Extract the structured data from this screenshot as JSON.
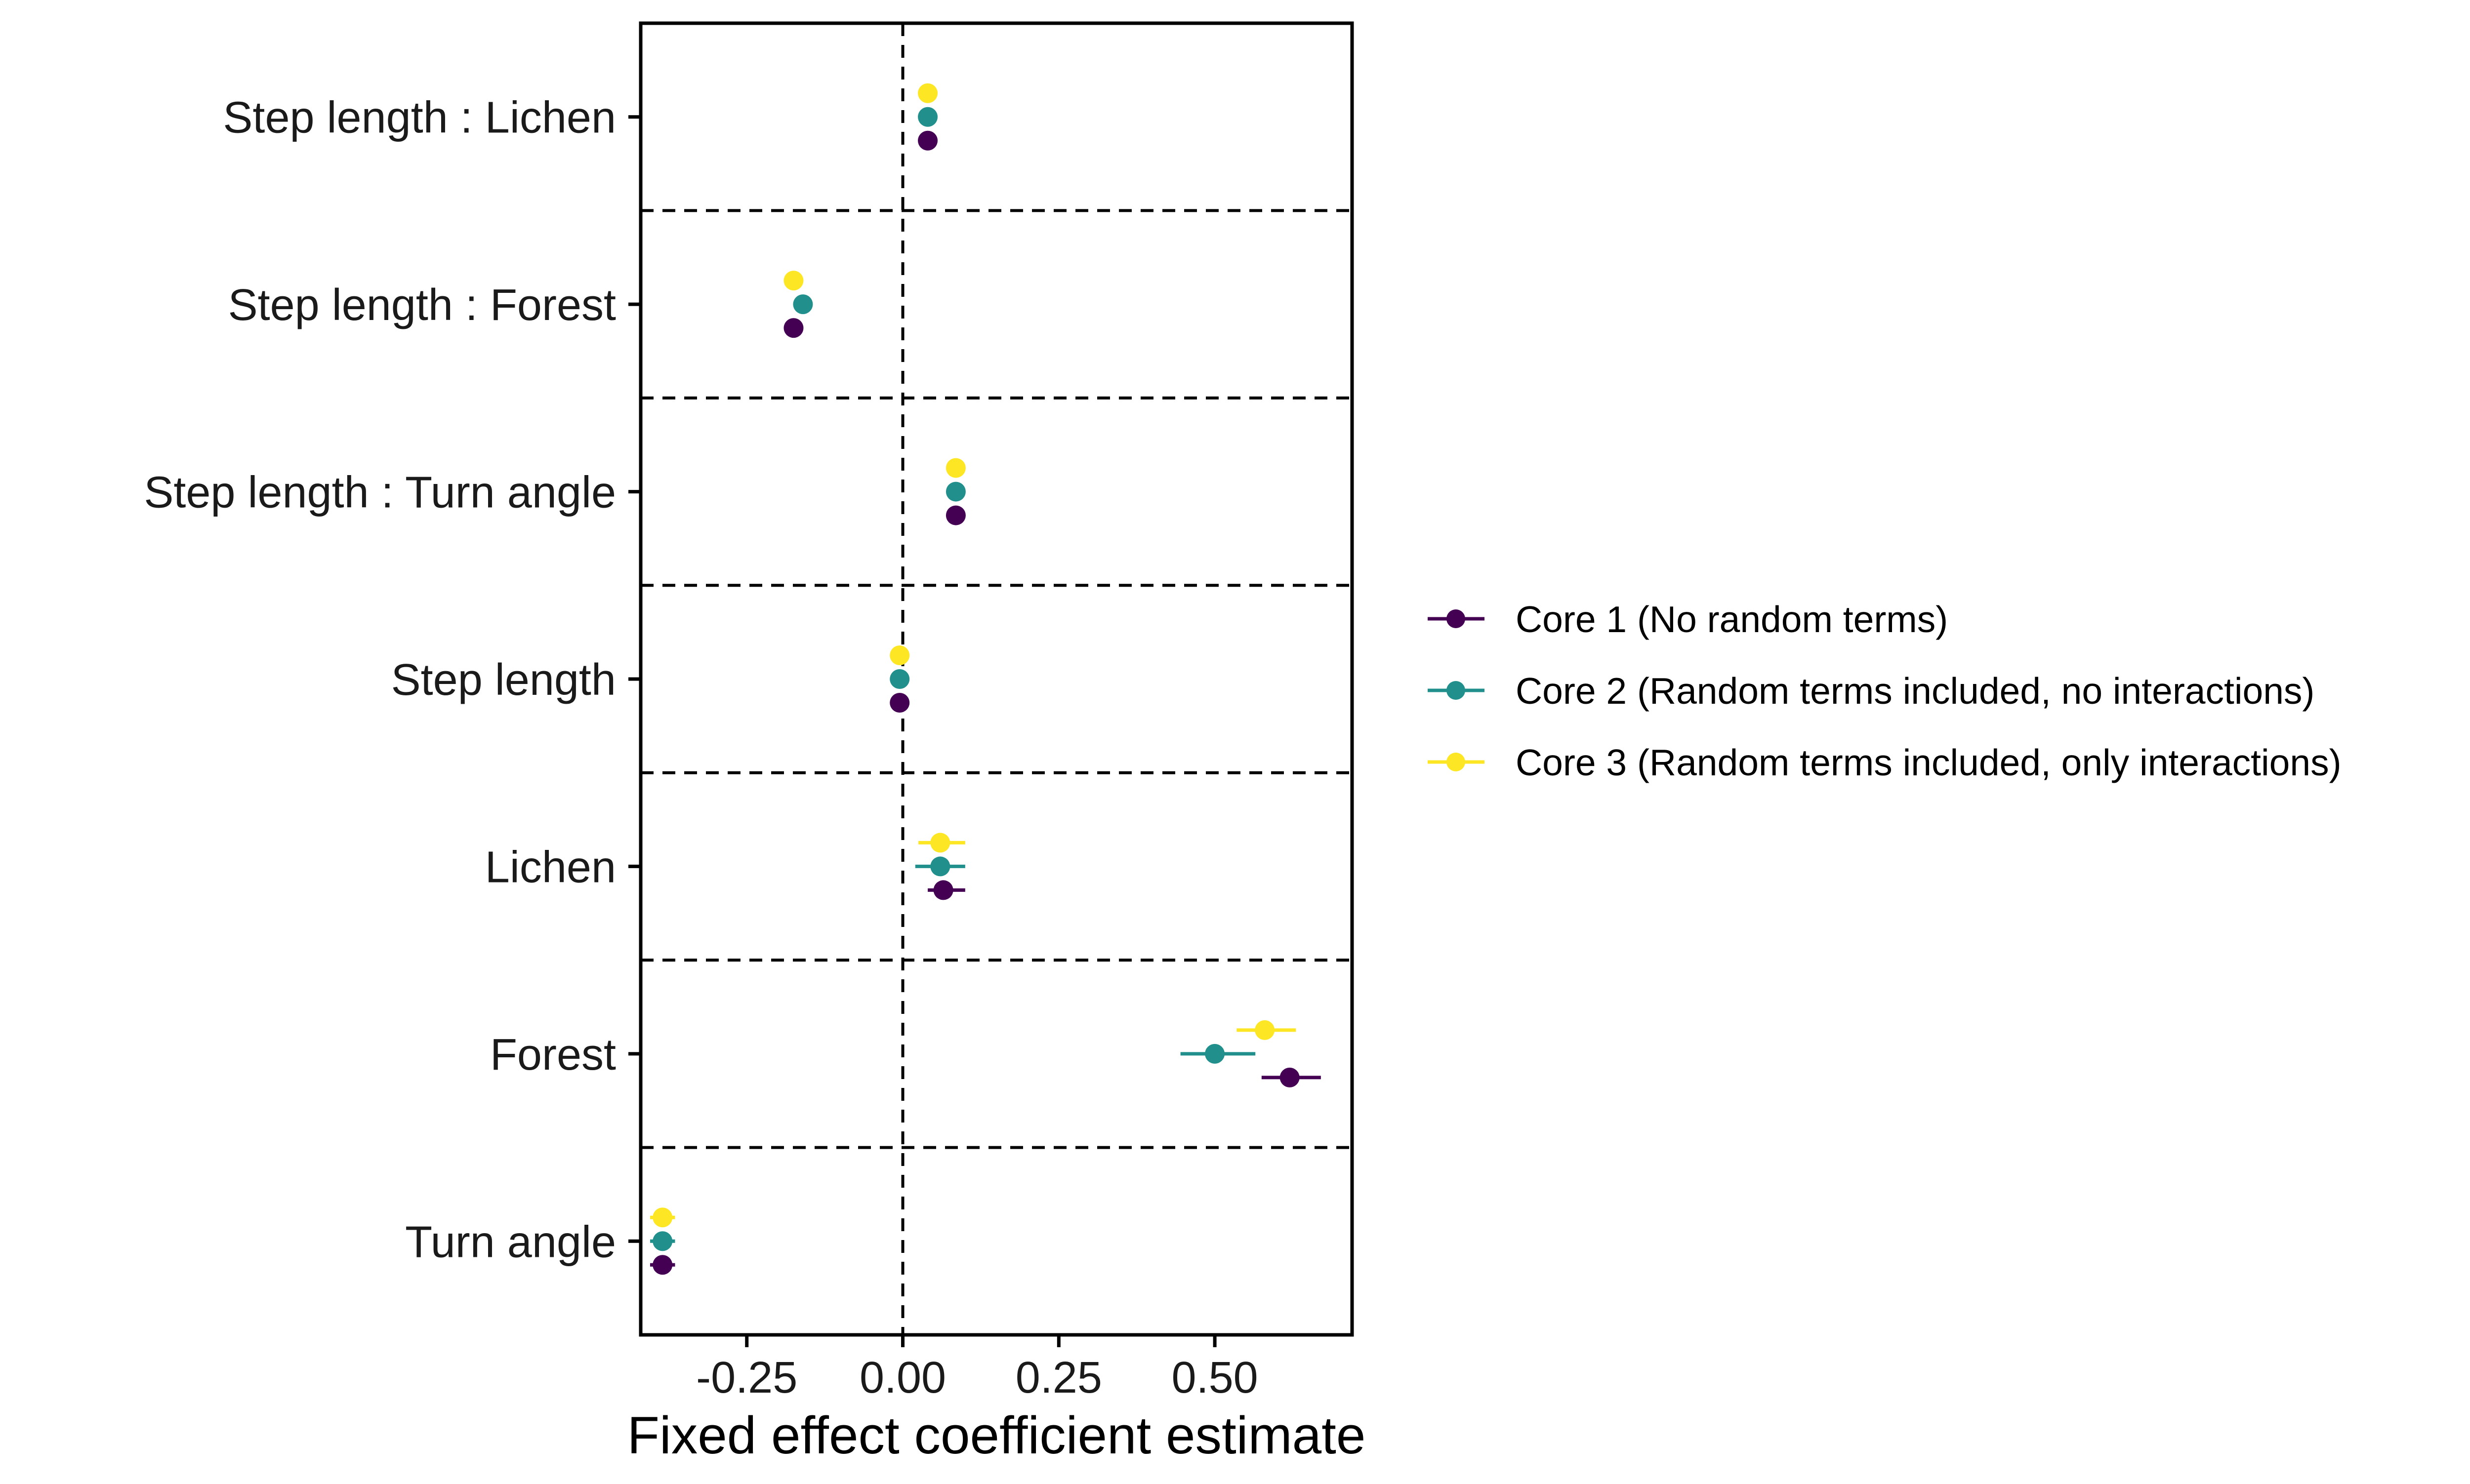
{
  "chart_data": {
    "type": "scatter",
    "subtype": "coefficient-plot-with-error-bars",
    "orientation": "horizontal",
    "title": "",
    "xlabel": "Fixed effect coefficient estimate",
    "ylabel": "",
    "xlim": [
      -0.42,
      0.72
    ],
    "xticks": [
      -0.25,
      0.0,
      0.25,
      0.5
    ],
    "xtick_labels": [
      "-0.25",
      "0.00",
      "0.25",
      "0.50"
    ],
    "reference_line": {
      "x": 0,
      "style": "dashed"
    },
    "group_separators": "dashed",
    "grid": false,
    "legend_placement": "right",
    "categories": [
      "Step length : Lichen",
      "Step length : Forest",
      "Step length : Turn angle",
      "Step length",
      "Lichen",
      "Forest",
      "Turn angle"
    ],
    "series": [
      {
        "name": "Core 1 (No random terms)",
        "color": "#440154",
        "estimates": [
          0.04,
          -0.175,
          0.085,
          -0.005,
          0.065,
          0.62,
          -0.385
        ],
        "lower": [
          0.04,
          -0.175,
          0.085,
          -0.005,
          0.04,
          0.575,
          -0.405
        ],
        "upper": [
          0.04,
          -0.175,
          0.085,
          -0.005,
          0.1,
          0.67,
          -0.365
        ]
      },
      {
        "name": "Core 2 (Random terms included, no interactions)",
        "color": "#21908C",
        "estimates": [
          0.04,
          -0.16,
          0.085,
          -0.005,
          0.06,
          0.5,
          -0.385
        ],
        "lower": [
          0.04,
          -0.16,
          0.085,
          -0.005,
          0.02,
          0.445,
          -0.405
        ],
        "upper": [
          0.04,
          -0.16,
          0.085,
          -0.005,
          0.1,
          0.565,
          -0.365
        ]
      },
      {
        "name": "Core 3 (Random terms included, only interactions)",
        "color": "#FDE725",
        "estimates": [
          0.04,
          -0.175,
          0.085,
          -0.005,
          0.06,
          0.58,
          -0.385
        ],
        "lower": [
          0.04,
          -0.175,
          0.085,
          -0.005,
          0.025,
          0.535,
          -0.405
        ],
        "upper": [
          0.04,
          -0.175,
          0.085,
          -0.005,
          0.1,
          0.63,
          -0.365
        ]
      }
    ]
  }
}
